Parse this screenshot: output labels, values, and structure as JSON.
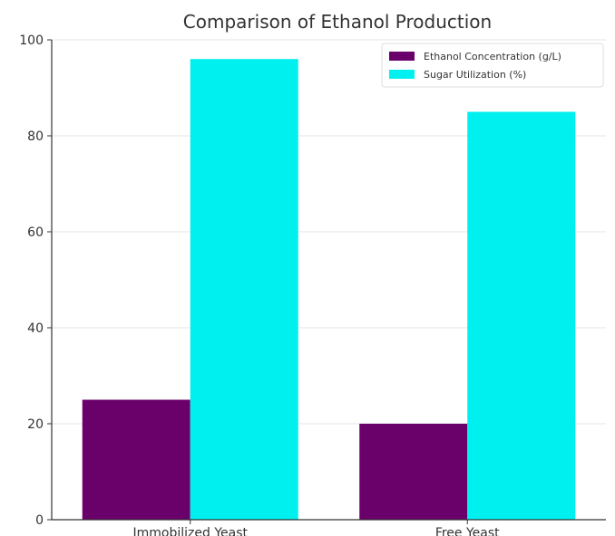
{
  "chart_data": {
    "type": "bar",
    "title": "Comparison of Ethanol Production",
    "xlabel": "",
    "ylabel": "",
    "categories": [
      "Immobilized Yeast",
      "Free Yeast"
    ],
    "series": [
      {
        "name": "Ethanol Concentration (g/L)",
        "values": [
          25,
          20
        ],
        "color": "#6a006a"
      },
      {
        "name": "Sugar Utilization (%)",
        "values": [
          96,
          85
        ],
        "color": "#00f0f0"
      }
    ],
    "ylim": [
      0,
      100
    ],
    "yticks": [
      0,
      20,
      40,
      60,
      80,
      100
    ],
    "grid": true,
    "legend_position": "top-right"
  }
}
